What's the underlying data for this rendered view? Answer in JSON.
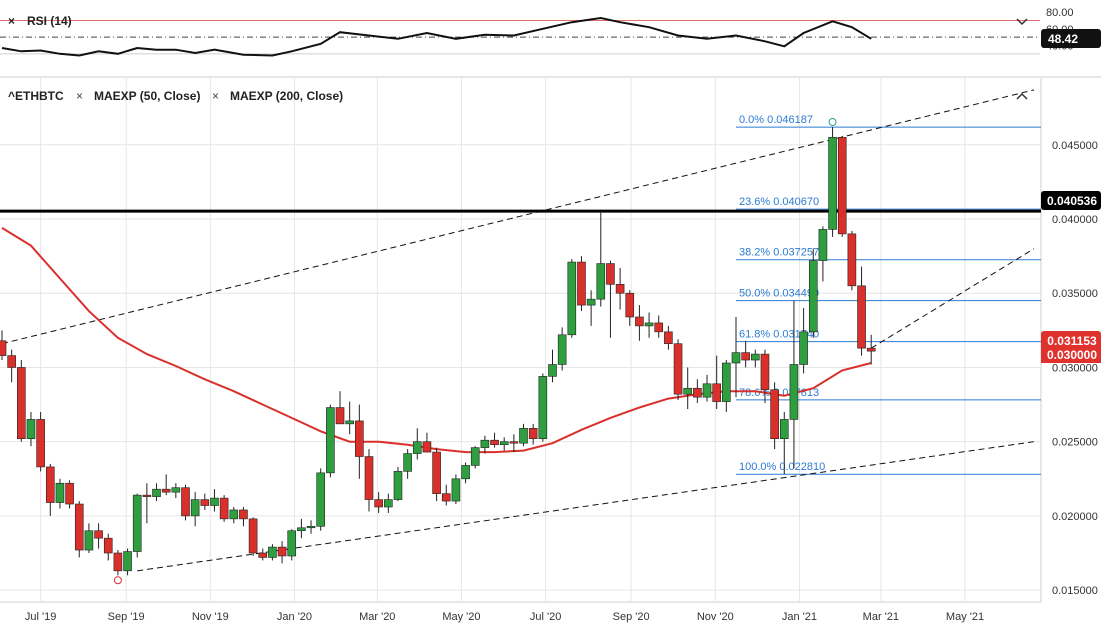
{
  "colors": {
    "up": "#2e9e3e",
    "down": "#d9302c",
    "ma50": "#d9302c",
    "fib": "#2b7bd4",
    "grid": "#e6e6e6",
    "text": "#222222",
    "price_tag": "#e0322d"
  },
  "rsi_panel": {
    "title": "RSI (14)",
    "close_symbol": "×",
    "current_value": "48.42",
    "level_labels": [
      "80.00",
      "60.00",
      "40.00"
    ],
    "upper_line": 70,
    "lower_line": 30,
    "mid_line": 50,
    "ylim": [
      25,
      85
    ]
  },
  "main_panel": {
    "symbol": "^ETHBTC",
    "indicators": [
      {
        "label": "MAEXP (50, Close)",
        "close_symbol": "×"
      },
      {
        "label": "MAEXP (200, Close)",
        "close_symbol": "×"
      }
    ],
    "last_price_label": "0.031153",
    "hidden_price_label": "0.030000",
    "resistance_label": "0.040536"
  },
  "chart_data": {
    "type": "candlestick",
    "interval": "weekly",
    "ylim": [
      0.0142,
      0.0495
    ],
    "xlim": [
      "2019-06-03",
      "2021-06-20"
    ],
    "y_ticks": [
      0.015,
      0.02,
      0.025,
      0.03,
      0.035,
      0.04,
      0.045
    ],
    "y_tick_labels": [
      "0.015000",
      "0.020000",
      "0.025000",
      "0.030000",
      "0.035000",
      "0.040000",
      "0.045000"
    ],
    "x_ticks": [
      {
        "date": "2019-07-01",
        "label": "Jul '19"
      },
      {
        "date": "2019-09-01",
        "label": "Sep '19"
      },
      {
        "date": "2019-11-01",
        "label": "Nov '19"
      },
      {
        "date": "2020-01-01",
        "label": "Jan '20"
      },
      {
        "date": "2020-03-01",
        "label": "Mar '20"
      },
      {
        "date": "2020-05-01",
        "label": "May '20"
      },
      {
        "date": "2020-07-01",
        "label": "Jul '20"
      },
      {
        "date": "2020-09-01",
        "label": "Sep '20"
      },
      {
        "date": "2020-11-01",
        "label": "Nov '20"
      },
      {
        "date": "2021-01-01",
        "label": "Jan '21"
      },
      {
        "date": "2021-03-01",
        "label": "Mar '21"
      },
      {
        "date": "2021-05-01",
        "label": "May '21"
      }
    ],
    "candles": [
      {
        "d": "2019-06-03",
        "o": 0.0318,
        "h": 0.0325,
        "l": 0.0305,
        "c": 0.0308
      },
      {
        "d": "2019-06-10",
        "o": 0.0308,
        "h": 0.0312,
        "l": 0.029,
        "c": 0.03
      },
      {
        "d": "2019-06-17",
        "o": 0.03,
        "h": 0.0305,
        "l": 0.025,
        "c": 0.0252
      },
      {
        "d": "2019-06-24",
        "o": 0.0252,
        "h": 0.027,
        "l": 0.0247,
        "c": 0.0265
      },
      {
        "d": "2019-07-01",
        "o": 0.0265,
        "h": 0.027,
        "l": 0.023,
        "c": 0.0233
      },
      {
        "d": "2019-07-08",
        "o": 0.0233,
        "h": 0.0235,
        "l": 0.02,
        "c": 0.0209
      },
      {
        "d": "2019-07-15",
        "o": 0.0209,
        "h": 0.0225,
        "l": 0.0205,
        "c": 0.0222
      },
      {
        "d": "2019-07-22",
        "o": 0.0222,
        "h": 0.0224,
        "l": 0.0205,
        "c": 0.0208
      },
      {
        "d": "2019-07-29",
        "o": 0.0208,
        "h": 0.021,
        "l": 0.0172,
        "c": 0.0177
      },
      {
        "d": "2019-08-05",
        "o": 0.0177,
        "h": 0.0195,
        "l": 0.0175,
        "c": 0.019
      },
      {
        "d": "2019-08-12",
        "o": 0.019,
        "h": 0.0195,
        "l": 0.0178,
        "c": 0.0185
      },
      {
        "d": "2019-08-19",
        "o": 0.0185,
        "h": 0.0188,
        "l": 0.017,
        "c": 0.0175
      },
      {
        "d": "2019-08-26",
        "o": 0.0175,
        "h": 0.0177,
        "l": 0.016,
        "c": 0.0163
      },
      {
        "d": "2019-09-02",
        "o": 0.0163,
        "h": 0.0178,
        "l": 0.016,
        "c": 0.0176
      },
      {
        "d": "2019-09-09",
        "o": 0.0176,
        "h": 0.0215,
        "l": 0.0172,
        "c": 0.0214
      },
      {
        "d": "2019-09-16",
        "o": 0.0214,
        "h": 0.0222,
        "l": 0.0195,
        "c": 0.0213
      },
      {
        "d": "2019-09-23",
        "o": 0.0213,
        "h": 0.0222,
        "l": 0.021,
        "c": 0.0218
      },
      {
        "d": "2019-09-30",
        "o": 0.0218,
        "h": 0.0228,
        "l": 0.0214,
        "c": 0.0216
      },
      {
        "d": "2019-10-07",
        "o": 0.0216,
        "h": 0.0222,
        "l": 0.0212,
        "c": 0.0219
      },
      {
        "d": "2019-10-14",
        "o": 0.0219,
        "h": 0.0221,
        "l": 0.0197,
        "c": 0.02
      },
      {
        "d": "2019-10-21",
        "o": 0.02,
        "h": 0.0216,
        "l": 0.0193,
        "c": 0.0211
      },
      {
        "d": "2019-10-28",
        "o": 0.0211,
        "h": 0.0215,
        "l": 0.0204,
        "c": 0.0207
      },
      {
        "d": "2019-11-04",
        "o": 0.0207,
        "h": 0.0218,
        "l": 0.0203,
        "c": 0.0212
      },
      {
        "d": "2019-11-11",
        "o": 0.0212,
        "h": 0.0214,
        "l": 0.0196,
        "c": 0.0198
      },
      {
        "d": "2019-11-18",
        "o": 0.0198,
        "h": 0.0206,
        "l": 0.0195,
        "c": 0.0204
      },
      {
        "d": "2019-11-25",
        "o": 0.0204,
        "h": 0.0206,
        "l": 0.0193,
        "c": 0.0198
      },
      {
        "d": "2019-12-02",
        "o": 0.0198,
        "h": 0.0199,
        "l": 0.0173,
        "c": 0.0175
      },
      {
        "d": "2019-12-09",
        "o": 0.0175,
        "h": 0.0178,
        "l": 0.017,
        "c": 0.0172
      },
      {
        "d": "2019-12-16",
        "o": 0.0172,
        "h": 0.0181,
        "l": 0.017,
        "c": 0.0179
      },
      {
        "d": "2019-12-23",
        "o": 0.0179,
        "h": 0.0183,
        "l": 0.0168,
        "c": 0.0173
      },
      {
        "d": "2019-12-30",
        "o": 0.0173,
        "h": 0.0191,
        "l": 0.017,
        "c": 0.019
      },
      {
        "d": "2020-01-06",
        "o": 0.019,
        "h": 0.0198,
        "l": 0.0185,
        "c": 0.0192
      },
      {
        "d": "2020-01-13",
        "o": 0.0192,
        "h": 0.0197,
        "l": 0.0188,
        "c": 0.0193
      },
      {
        "d": "2020-01-20",
        "o": 0.0193,
        "h": 0.0232,
        "l": 0.019,
        "c": 0.0229
      },
      {
        "d": "2020-01-27",
        "o": 0.0229,
        "h": 0.0275,
        "l": 0.0226,
        "c": 0.0273
      },
      {
        "d": "2020-02-03",
        "o": 0.0273,
        "h": 0.0284,
        "l": 0.0262,
        "c": 0.0262
      },
      {
        "d": "2020-02-10",
        "o": 0.0262,
        "h": 0.0277,
        "l": 0.0255,
        "c": 0.0264
      },
      {
        "d": "2020-02-17",
        "o": 0.0264,
        "h": 0.0275,
        "l": 0.0225,
        "c": 0.024
      },
      {
        "d": "2020-02-24",
        "o": 0.024,
        "h": 0.0245,
        "l": 0.0203,
        "c": 0.0211
      },
      {
        "d": "2020-03-02",
        "o": 0.0211,
        "h": 0.0216,
        "l": 0.0202,
        "c": 0.0206
      },
      {
        "d": "2020-03-09",
        "o": 0.0206,
        "h": 0.0215,
        "l": 0.0202,
        "c": 0.0211
      },
      {
        "d": "2020-03-16",
        "o": 0.0211,
        "h": 0.0233,
        "l": 0.021,
        "c": 0.023
      },
      {
        "d": "2020-03-23",
        "o": 0.023,
        "h": 0.0245,
        "l": 0.0225,
        "c": 0.0242
      },
      {
        "d": "2020-03-30",
        "o": 0.0242,
        "h": 0.0259,
        "l": 0.0238,
        "c": 0.025
      },
      {
        "d": "2020-04-06",
        "o": 0.025,
        "h": 0.0256,
        "l": 0.0243,
        "c": 0.0243
      },
      {
        "d": "2020-04-13",
        "o": 0.0243,
        "h": 0.0246,
        "l": 0.021,
        "c": 0.0215
      },
      {
        "d": "2020-04-20",
        "o": 0.0215,
        "h": 0.0221,
        "l": 0.0207,
        "c": 0.021
      },
      {
        "d": "2020-04-27",
        "o": 0.021,
        "h": 0.0228,
        "l": 0.0208,
        "c": 0.0225
      },
      {
        "d": "2020-05-04",
        "o": 0.0225,
        "h": 0.0236,
        "l": 0.0222,
        "c": 0.0234
      },
      {
        "d": "2020-05-11",
        "o": 0.0234,
        "h": 0.0247,
        "l": 0.0232,
        "c": 0.0246
      },
      {
        "d": "2020-05-18",
        "o": 0.0246,
        "h": 0.0254,
        "l": 0.0242,
        "c": 0.0251
      },
      {
        "d": "2020-05-25",
        "o": 0.0251,
        "h": 0.0256,
        "l": 0.0246,
        "c": 0.0248
      },
      {
        "d": "2020-06-01",
        "o": 0.0248,
        "h": 0.0253,
        "l": 0.0244,
        "c": 0.025
      },
      {
        "d": "2020-06-08",
        "o": 0.025,
        "h": 0.0255,
        "l": 0.0243,
        "c": 0.0249
      },
      {
        "d": "2020-06-15",
        "o": 0.0249,
        "h": 0.0262,
        "l": 0.0247,
        "c": 0.0259
      },
      {
        "d": "2020-06-22",
        "o": 0.0259,
        "h": 0.0262,
        "l": 0.0248,
        "c": 0.0252
      },
      {
        "d": "2020-06-29",
        "o": 0.0252,
        "h": 0.0296,
        "l": 0.025,
        "c": 0.0294
      },
      {
        "d": "2020-07-06",
        "o": 0.0294,
        "h": 0.0312,
        "l": 0.029,
        "c": 0.0302
      },
      {
        "d": "2020-07-13",
        "o": 0.0302,
        "h": 0.0327,
        "l": 0.0298,
        "c": 0.0322
      },
      {
        "d": "2020-07-20",
        "o": 0.0322,
        "h": 0.0373,
        "l": 0.032,
        "c": 0.0371
      },
      {
        "d": "2020-07-27",
        "o": 0.0371,
        "h": 0.0375,
        "l": 0.0338,
        "c": 0.0342
      },
      {
        "d": "2020-08-03",
        "o": 0.0342,
        "h": 0.0352,
        "l": 0.0328,
        "c": 0.0346
      },
      {
        "d": "2020-08-10",
        "o": 0.0346,
        "h": 0.0405,
        "l": 0.0341,
        "c": 0.037
      },
      {
        "d": "2020-08-17",
        "o": 0.037,
        "h": 0.0372,
        "l": 0.032,
        "c": 0.0356
      },
      {
        "d": "2020-08-24",
        "o": 0.0356,
        "h": 0.0367,
        "l": 0.0339,
        "c": 0.035
      },
      {
        "d": "2020-08-31",
        "o": 0.035,
        "h": 0.0352,
        "l": 0.0328,
        "c": 0.0334
      },
      {
        "d": "2020-09-07",
        "o": 0.0334,
        "h": 0.0342,
        "l": 0.0318,
        "c": 0.0328
      },
      {
        "d": "2020-09-14",
        "o": 0.0328,
        "h": 0.0337,
        "l": 0.032,
        "c": 0.033
      },
      {
        "d": "2020-09-21",
        "o": 0.033,
        "h": 0.0335,
        "l": 0.032,
        "c": 0.0324
      },
      {
        "d": "2020-09-28",
        "o": 0.0324,
        "h": 0.0328,
        "l": 0.0312,
        "c": 0.0316
      },
      {
        "d": "2020-10-05",
        "o": 0.0316,
        "h": 0.0319,
        "l": 0.0278,
        "c": 0.0282
      },
      {
        "d": "2020-10-12",
        "o": 0.0282,
        "h": 0.03,
        "l": 0.0272,
        "c": 0.0286
      },
      {
        "d": "2020-10-19",
        "o": 0.0286,
        "h": 0.0292,
        "l": 0.0276,
        "c": 0.028
      },
      {
        "d": "2020-10-26",
        "o": 0.028,
        "h": 0.0295,
        "l": 0.0277,
        "c": 0.0289
      },
      {
        "d": "2020-11-02",
        "o": 0.0289,
        "h": 0.0308,
        "l": 0.0272,
        "c": 0.0277
      },
      {
        "d": "2020-11-09",
        "o": 0.0277,
        "h": 0.0305,
        "l": 0.027,
        "c": 0.0303
      },
      {
        "d": "2020-11-16",
        "o": 0.0303,
        "h": 0.0334,
        "l": 0.028,
        "c": 0.031
      },
      {
        "d": "2020-11-23",
        "o": 0.031,
        "h": 0.0318,
        "l": 0.03,
        "c": 0.0305
      },
      {
        "d": "2020-11-30",
        "o": 0.0305,
        "h": 0.0312,
        "l": 0.03,
        "c": 0.0309
      },
      {
        "d": "2020-12-07",
        "o": 0.0309,
        "h": 0.0312,
        "l": 0.0276,
        "c": 0.0285
      },
      {
        "d": "2020-12-14",
        "o": 0.0285,
        "h": 0.029,
        "l": 0.0245,
        "c": 0.0252
      },
      {
        "d": "2020-12-21",
        "o": 0.0252,
        "h": 0.027,
        "l": 0.0228,
        "c": 0.0265
      },
      {
        "d": "2020-12-28",
        "o": 0.0265,
        "h": 0.0345,
        "l": 0.0232,
        "c": 0.0302
      },
      {
        "d": "2021-01-04",
        "o": 0.0302,
        "h": 0.034,
        "l": 0.0296,
        "c": 0.0324
      },
      {
        "d": "2021-01-11",
        "o": 0.0324,
        "h": 0.038,
        "l": 0.032,
        "c": 0.0372
      },
      {
        "d": "2021-01-18",
        "o": 0.0372,
        "h": 0.0395,
        "l": 0.0358,
        "c": 0.0393
      },
      {
        "d": "2021-01-25",
        "o": 0.0393,
        "h": 0.0462,
        "l": 0.0388,
        "c": 0.0455
      },
      {
        "d": "2021-02-01",
        "o": 0.0455,
        "h": 0.0456,
        "l": 0.0388,
        "c": 0.039
      },
      {
        "d": "2021-02-08",
        "o": 0.039,
        "h": 0.0392,
        "l": 0.0352,
        "c": 0.0355
      },
      {
        "d": "2021-02-15",
        "o": 0.0355,
        "h": 0.0368,
        "l": 0.0308,
        "c": 0.0313
      },
      {
        "d": "2021-02-22",
        "o": 0.0313,
        "h": 0.0322,
        "l": 0.0302,
        "c": 0.0311
      }
    ],
    "ma50": [
      [
        "2019-06-03",
        0.0394
      ],
      [
        "2019-06-24",
        0.0382
      ],
      [
        "2019-07-15",
        0.036
      ],
      [
        "2019-08-05",
        0.0338
      ],
      [
        "2019-08-26",
        0.032
      ],
      [
        "2019-09-16",
        0.0309
      ],
      [
        "2019-10-07",
        0.0301
      ],
      [
        "2019-10-28",
        0.0292
      ],
      [
        "2019-11-18",
        0.0284
      ],
      [
        "2019-12-09",
        0.0275
      ],
      [
        "2019-12-30",
        0.0266
      ],
      [
        "2020-01-20",
        0.0257
      ],
      [
        "2020-02-10",
        0.025
      ],
      [
        "2020-03-02",
        0.025
      ],
      [
        "2020-03-23",
        0.0248
      ],
      [
        "2020-04-13",
        0.0245
      ],
      [
        "2020-05-04",
        0.0243
      ],
      [
        "2020-05-25",
        0.0243
      ],
      [
        "2020-06-15",
        0.0244
      ],
      [
        "2020-07-06",
        0.0249
      ],
      [
        "2020-07-27",
        0.0258
      ],
      [
        "2020-08-17",
        0.0266
      ],
      [
        "2020-09-07",
        0.0273
      ],
      [
        "2020-09-28",
        0.0279
      ],
      [
        "2020-10-19",
        0.0282
      ],
      [
        "2020-11-09",
        0.0284
      ],
      [
        "2020-11-30",
        0.0284
      ],
      [
        "2020-12-21",
        0.0281
      ],
      [
        "2021-01-11",
        0.0286
      ],
      [
        "2021-02-01",
        0.0298
      ],
      [
        "2021-02-22",
        0.0303
      ]
    ],
    "trendlines": [
      {
        "from": [
          "2019-06-03",
          0.0316
        ],
        "to": [
          "2021-06-20",
          0.0487
        ],
        "style": "dashed"
      },
      {
        "from": [
          "2019-09-09",
          0.0163
        ],
        "to": [
          "2021-06-20",
          0.025
        ],
        "style": "dashed"
      },
      {
        "from": [
          "2021-02-22",
          0.0313
        ],
        "to": [
          "2021-06-20",
          0.038
        ],
        "style": "dashed"
      }
    ],
    "horizontal_lines": [
      {
        "y": 0.040536,
        "color": "#000000",
        "width": 3
      }
    ],
    "fibonacci": {
      "x_start": "2020-11-16",
      "levels": [
        {
          "label": "0.0% 0.046187",
          "value": 0.046187
        },
        {
          "label": "23.6% 0.040670",
          "value": 0.04067
        },
        {
          "label": "38.2% 0.037257",
          "value": 0.037257
        },
        {
          "label": "50.0% 0.034499",
          "value": 0.034499
        },
        {
          "label": "61.8% 0.031740",
          "value": 0.03174
        },
        {
          "label": "78.6% 0.027813",
          "value": 0.027813
        },
        {
          "label": "100.0% 0.022810",
          "value": 0.02281
        }
      ]
    },
    "rsi": [
      [
        "2019-06-03",
        37
      ],
      [
        "2019-06-17",
        33
      ],
      [
        "2019-07-01",
        34
      ],
      [
        "2019-07-15",
        30
      ],
      [
        "2019-07-29",
        28
      ],
      [
        "2019-08-12",
        33
      ],
      [
        "2019-08-26",
        30
      ],
      [
        "2019-09-09",
        37
      ],
      [
        "2019-09-23",
        35
      ],
      [
        "2019-10-07",
        35
      ],
      [
        "2019-10-21",
        31
      ],
      [
        "2019-11-04",
        35
      ],
      [
        "2019-11-25",
        29
      ],
      [
        "2019-12-16",
        28
      ],
      [
        "2019-12-30",
        33
      ],
      [
        "2020-01-20",
        42
      ],
      [
        "2020-02-03",
        56
      ],
      [
        "2020-02-24",
        52
      ],
      [
        "2020-03-16",
        48
      ],
      [
        "2020-04-06",
        55
      ],
      [
        "2020-04-27",
        48
      ],
      [
        "2020-05-18",
        53
      ],
      [
        "2020-06-08",
        52
      ],
      [
        "2020-06-29",
        60
      ],
      [
        "2020-07-20",
        68
      ],
      [
        "2020-08-10",
        73
      ],
      [
        "2020-08-24",
        68
      ],
      [
        "2020-09-14",
        62
      ],
      [
        "2020-10-05",
        52
      ],
      [
        "2020-10-26",
        48
      ],
      [
        "2020-11-16",
        52
      ],
      [
        "2020-12-07",
        45
      ],
      [
        "2020-12-21",
        39
      ],
      [
        "2021-01-04",
        55
      ],
      [
        "2021-01-25",
        69
      ],
      [
        "2021-02-08",
        62
      ],
      [
        "2021-02-22",
        48
      ]
    ]
  }
}
